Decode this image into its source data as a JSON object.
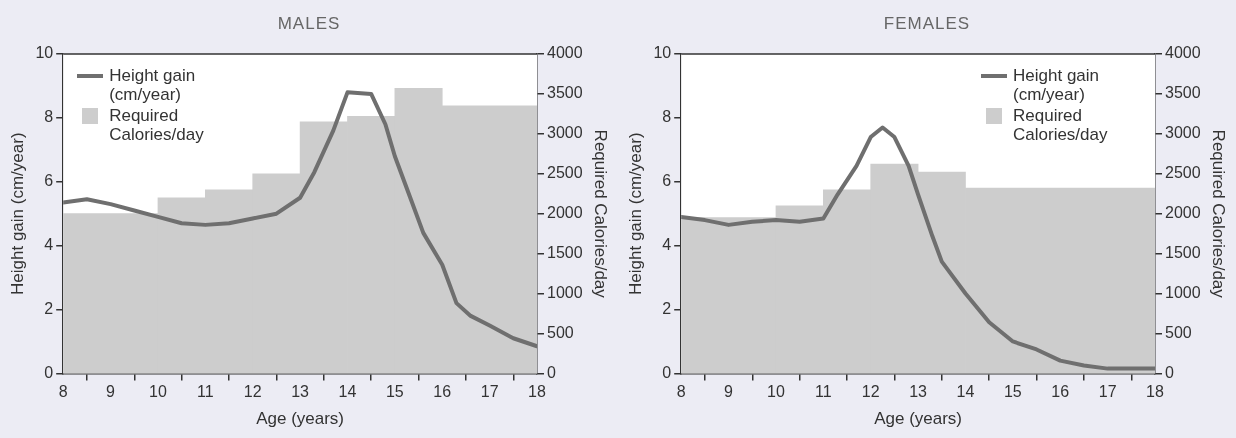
{
  "chart_data": [
    {
      "type": "histogram",
      "title": "MALES",
      "xlabel": "Age (years)",
      "ylabel": "Height gain (cm/year)",
      "y2label": "Required Calories/day",
      "bins": [
        8,
        10,
        11,
        12,
        13,
        14,
        15,
        16,
        18
      ],
      "series": [
        {
          "name": "Height gain (cm/year)",
          "type": "line",
          "color": "#6f6f6f",
          "x": [
            8,
            8.5,
            9,
            9.5,
            10,
            10.5,
            11,
            11.5,
            12,
            12.5,
            13,
            13.3,
            13.7,
            14,
            14.5,
            14.8,
            15,
            15.3,
            15.6,
            16,
            16.3,
            16.6,
            17,
            17.5,
            18
          ],
          "values": [
            5.35,
            5.45,
            5.3,
            5.1,
            4.9,
            4.7,
            4.65,
            4.7,
            4.85,
            5.0,
            5.5,
            6.3,
            7.6,
            8.8,
            8.75,
            7.8,
            6.8,
            5.6,
            4.4,
            3.4,
            2.2,
            1.8,
            1.5,
            1.1,
            0.85
          ]
        },
        {
          "name": "Required Calories/day",
          "type": "histogram",
          "axis": "y2",
          "color": "#cdcdcd",
          "values": [
            2000,
            2200,
            2300,
            2500,
            3150,
            3220,
            3570,
            3350
          ]
        }
      ],
      "xlim": [
        8,
        18
      ],
      "xticks": [
        8,
        9,
        10,
        11,
        12,
        13,
        14,
        15,
        16,
        17,
        18
      ],
      "ylim": [
        0,
        10
      ],
      "yticks": [
        0,
        2,
        4,
        6,
        8,
        10
      ],
      "y2lim": [
        0,
        4000
      ],
      "y2ticks": [
        0,
        500,
        1000,
        1500,
        2000,
        2500,
        3000,
        3500,
        4000
      ],
      "legend": "top left",
      "grid": false
    },
    {
      "type": "histogram",
      "title": "FEMALES",
      "xlabel": "Age (years)",
      "ylabel": "Height gain (cm/year)",
      "y2label": "Required Calories/day",
      "bins": [
        8,
        10,
        11,
        12,
        13,
        14,
        18
      ],
      "series": [
        {
          "name": "Height gain (cm/year)",
          "type": "line",
          "color": "#6f6f6f",
          "x": [
            8,
            8.5,
            9,
            9.5,
            10,
            10.5,
            11,
            11.3,
            11.7,
            12,
            12.25,
            12.5,
            12.8,
            13,
            13.3,
            13.5,
            14,
            14.5,
            15,
            15.5,
            16,
            16.5,
            17,
            18
          ],
          "values": [
            4.9,
            4.8,
            4.65,
            4.75,
            4.8,
            4.75,
            4.85,
            5.6,
            6.5,
            7.4,
            7.7,
            7.4,
            6.5,
            5.6,
            4.3,
            3.5,
            2.5,
            1.6,
            1.0,
            0.75,
            0.4,
            0.25,
            0.15,
            0.15
          ]
        },
        {
          "name": "Required Calories/day",
          "type": "histogram",
          "axis": "y2",
          "color": "#cdcdcd",
          "values": [
            1950,
            2100,
            2300,
            2620,
            2520,
            2320
          ]
        }
      ],
      "xlim": [
        8,
        18
      ],
      "xticks": [
        8,
        9,
        10,
        11,
        12,
        13,
        14,
        15,
        16,
        17,
        18
      ],
      "ylim": [
        0,
        10
      ],
      "yticks": [
        0,
        2,
        4,
        6,
        8,
        10
      ],
      "y2lim": [
        0,
        4000
      ],
      "y2ticks": [
        0,
        500,
        1000,
        1500,
        2000,
        2500,
        3000,
        3500,
        4000
      ],
      "legend": "top right",
      "grid": false
    }
  ]
}
